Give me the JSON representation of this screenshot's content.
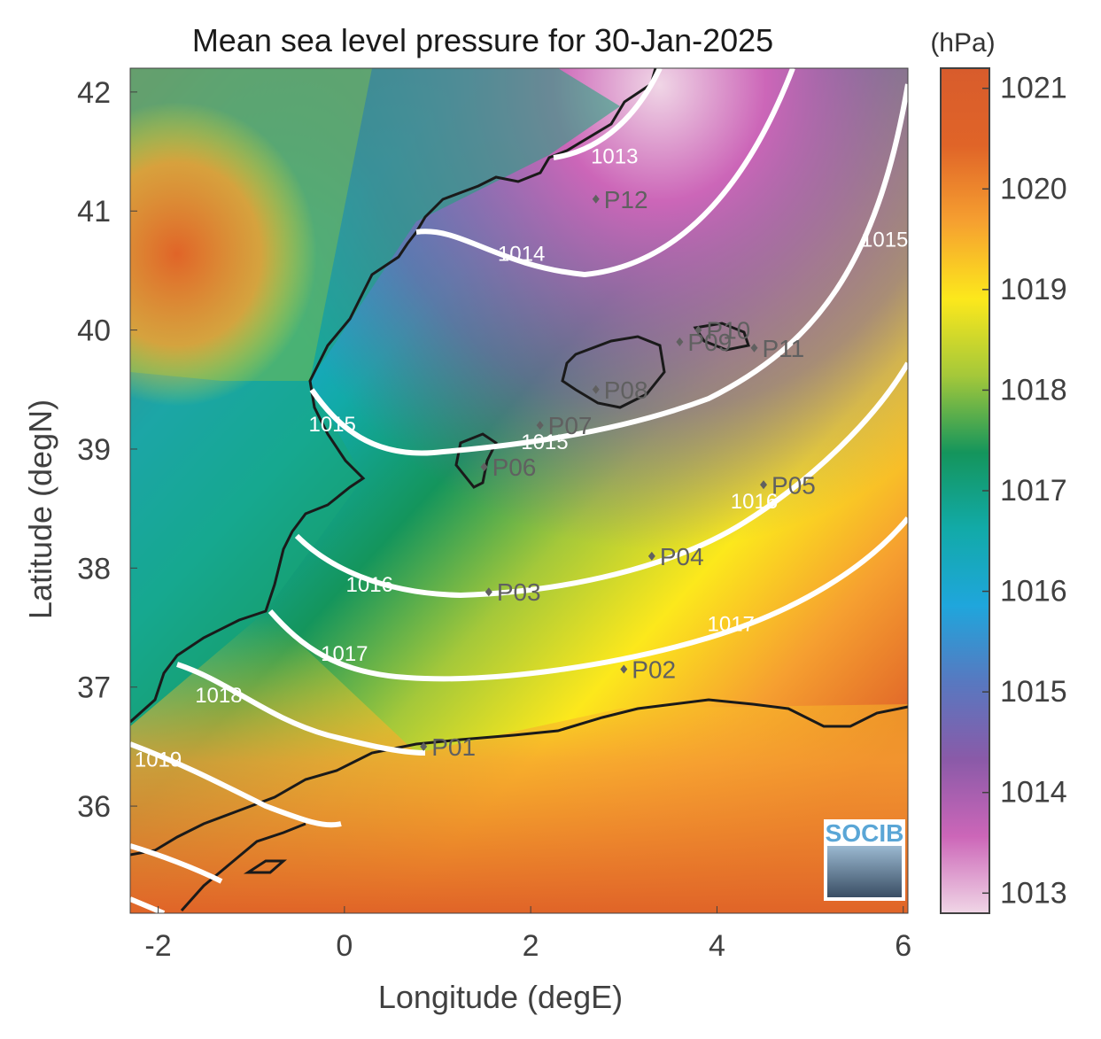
{
  "title": "Mean sea level pressure for 30-Jan-2025",
  "xlabel": "Longitude (degE)",
  "ylabel": "Latitude (degN)",
  "colorbar": {
    "unit": "(hPa)",
    "range": [
      1012.8,
      1021.2
    ],
    "ticks": [
      "1013",
      "1014",
      "1015",
      "1016",
      "1017",
      "1018",
      "1019",
      "1020",
      "1021"
    ],
    "colormap": [
      "#f0d6e6",
      "#cc66b8",
      "#8a5aa8",
      "#5878c0",
      "#1fa6dc",
      "#12aaa8",
      "#14955c",
      "#a4c83a",
      "#fce81c",
      "#f6a030",
      "#e06428",
      "#d85c2c"
    ]
  },
  "map": {
    "xlim": [
      -2.3,
      6.05
    ],
    "ylim": [
      35.1,
      42.2
    ],
    "xticks": [
      {
        "v": -2,
        "label": "-2"
      },
      {
        "v": 0,
        "label": "0"
      },
      {
        "v": 2,
        "label": "2"
      },
      {
        "v": 4,
        "label": "4"
      },
      {
        "v": 6,
        "label": "6"
      }
    ],
    "yticks": [
      {
        "v": 36,
        "label": "36"
      },
      {
        "v": 37,
        "label": "37"
      },
      {
        "v": 38,
        "label": "38"
      },
      {
        "v": 39,
        "label": "39"
      },
      {
        "v": 40,
        "label": "40"
      },
      {
        "v": 41,
        "label": "41"
      },
      {
        "v": 42,
        "label": "42"
      }
    ]
  },
  "contours": [
    {
      "label": "1013",
      "label_at": [
        2.9,
        41.4
      ]
    },
    {
      "label": "1014",
      "label_at": [
        1.9,
        40.58
      ]
    },
    {
      "label": "1015",
      "label_at": [
        -0.13,
        39.15
      ]
    },
    {
      "label": "1015",
      "label_at": [
        2.15,
        39.0
      ]
    },
    {
      "label": "1015",
      "label_at": [
        5.8,
        40.7
      ]
    },
    {
      "label": "1016",
      "label_at": [
        0.27,
        37.8
      ]
    },
    {
      "label": "1016",
      "label_at": [
        4.4,
        38.5
      ]
    },
    {
      "label": "1017",
      "label_at": [
        0.0,
        37.22
      ]
    },
    {
      "label": "1017",
      "label_at": [
        4.15,
        37.47
      ]
    },
    {
      "label": "1018",
      "label_at": [
        -1.35,
        36.87
      ]
    },
    {
      "label": "1019",
      "label_at": [
        -2.0,
        36.33
      ]
    }
  ],
  "stations": [
    {
      "name": "P01",
      "lon": 0.85,
      "lat": 36.5
    },
    {
      "name": "P02",
      "lon": 3.0,
      "lat": 37.15
    },
    {
      "name": "P03",
      "lon": 1.55,
      "lat": 37.8
    },
    {
      "name": "P04",
      "lon": 3.3,
      "lat": 38.1
    },
    {
      "name": "P05",
      "lon": 4.5,
      "lat": 38.7
    },
    {
      "name": "P06",
      "lon": 1.5,
      "lat": 38.85
    },
    {
      "name": "P07",
      "lon": 2.1,
      "lat": 39.2
    },
    {
      "name": "P08",
      "lon": 2.7,
      "lat": 39.5
    },
    {
      "name": "P09",
      "lon": 3.6,
      "lat": 39.9
    },
    {
      "name": "P10",
      "lon": 3.8,
      "lat": 40.0
    },
    {
      "name": "P11",
      "lon": 4.4,
      "lat": 39.85
    },
    {
      "name": "P12",
      "lon": 2.7,
      "lat": 41.1
    }
  ],
  "logo_text": "SOCIB"
}
